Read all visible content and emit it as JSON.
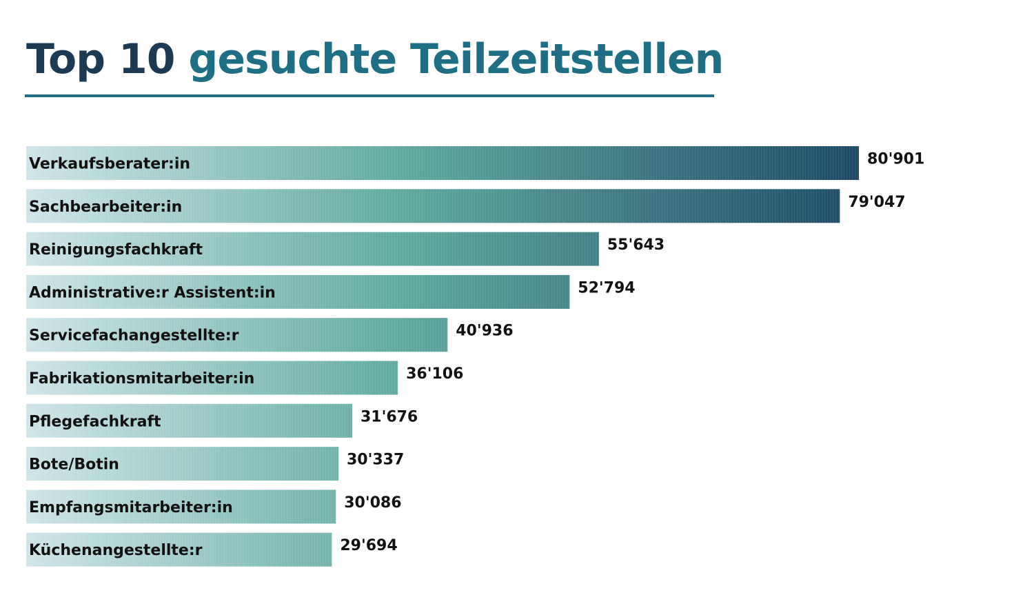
{
  "title": {
    "part1": "Top 10",
    "part2": "gesuchte Teilzeitstellen"
  },
  "colors": {
    "title_dark": "#1d3a55",
    "title_accent": "#1e6f86",
    "gradient": [
      "#cfe5e8",
      "#5faaa0",
      "#1d4a68"
    ]
  },
  "chart_data": {
    "type": "bar",
    "orientation": "horizontal",
    "categories": [
      "Verkaufsberater:in",
      "Sachbearbeiter:in",
      "Reinigungsfachkraft",
      "Administrative:r Assistent:in",
      "Servicefachangestellte:r",
      "Fabrikationsmitarbeiter:in",
      "Pflegefachkraft",
      "Bote/Botin",
      "Empfangsmitarbeiter:in",
      "Küchenangestellte:r"
    ],
    "values": [
      80901,
      79047,
      55643,
      52794,
      40936,
      36106,
      31676,
      30337,
      30086,
      29694
    ],
    "value_labels": [
      "80'901",
      "79'047",
      "55'643",
      "52'794",
      "40'936",
      "36'106",
      "31'676",
      "30'337",
      "30'086",
      "29'694"
    ],
    "xlim": [
      0,
      80901
    ],
    "grid": false,
    "legend": "none"
  }
}
